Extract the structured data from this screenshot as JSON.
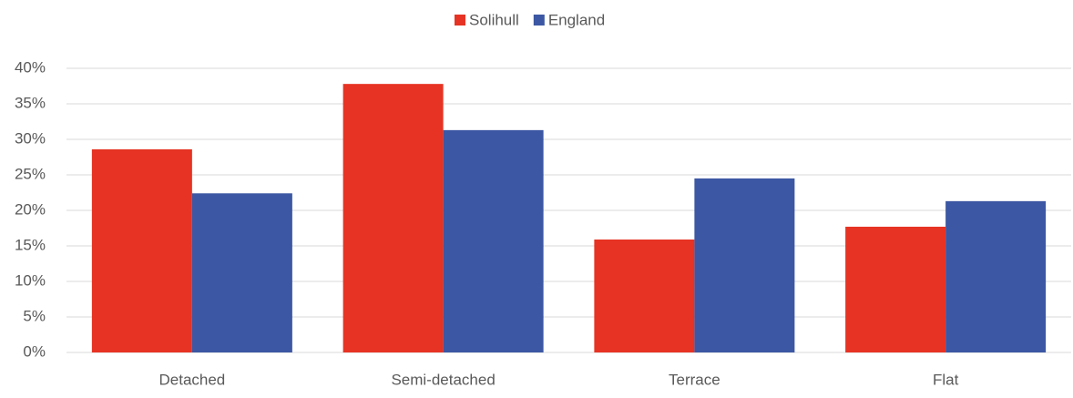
{
  "chart_data": {
    "type": "bar",
    "categories": [
      "Detached",
      "Semi-detached",
      "Terrace",
      "Flat"
    ],
    "series": [
      {
        "name": "Solihull",
        "color": "#e63323",
        "values": [
          28.6,
          37.8,
          15.9,
          17.7
        ]
      },
      {
        "name": "England",
        "color": "#3c57a3",
        "values": [
          22.4,
          31.3,
          24.5,
          21.3
        ]
      }
    ],
    "ylim": [
      0,
      40
    ],
    "yticks": [
      {
        "value": 0,
        "label": "0%"
      },
      {
        "value": 5,
        "label": "5%"
      },
      {
        "value": 10,
        "label": "10%"
      },
      {
        "value": 15,
        "label": "15%"
      },
      {
        "value": 20,
        "label": "20%"
      },
      {
        "value": 25,
        "label": "25%"
      },
      {
        "value": 30,
        "label": "30%"
      },
      {
        "value": 35,
        "label": "35%"
      },
      {
        "value": 40,
        "label": "40%"
      }
    ],
    "grid": true,
    "legend": "top"
  }
}
